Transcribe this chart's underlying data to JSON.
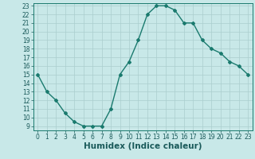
{
  "title": "",
  "xlabel": "Humidex (Indice chaleur)",
  "ylabel": "",
  "x": [
    0,
    1,
    2,
    3,
    4,
    5,
    6,
    7,
    8,
    9,
    10,
    11,
    12,
    13,
    14,
    15,
    16,
    17,
    18,
    19,
    20,
    21,
    22,
    23
  ],
  "y": [
    15,
    13,
    12,
    10.5,
    9.5,
    9,
    9,
    9,
    11,
    15,
    16.5,
    19,
    22,
    23,
    23,
    22.5,
    21,
    21,
    19,
    18,
    17.5,
    16.5,
    16,
    15
  ],
  "line_color": "#1a7a6e",
  "marker": "D",
  "marker_size": 2.0,
  "background_color": "#c8e8e8",
  "grid_color": "#aacece",
  "ylim": [
    9,
    23
  ],
  "xlim": [
    -0.5,
    23.5
  ],
  "yticks": [
    9,
    10,
    11,
    12,
    13,
    14,
    15,
    16,
    17,
    18,
    19,
    20,
    21,
    22,
    23
  ],
  "xticks": [
    0,
    1,
    2,
    3,
    4,
    5,
    6,
    7,
    8,
    9,
    10,
    11,
    12,
    13,
    14,
    15,
    16,
    17,
    18,
    19,
    20,
    21,
    22,
    23
  ],
  "tick_label_fontsize": 5.5,
  "xlabel_fontsize": 7.5,
  "spine_color": "#1a7a6e",
  "text_color": "#1a5a5a",
  "linewidth": 1.0
}
